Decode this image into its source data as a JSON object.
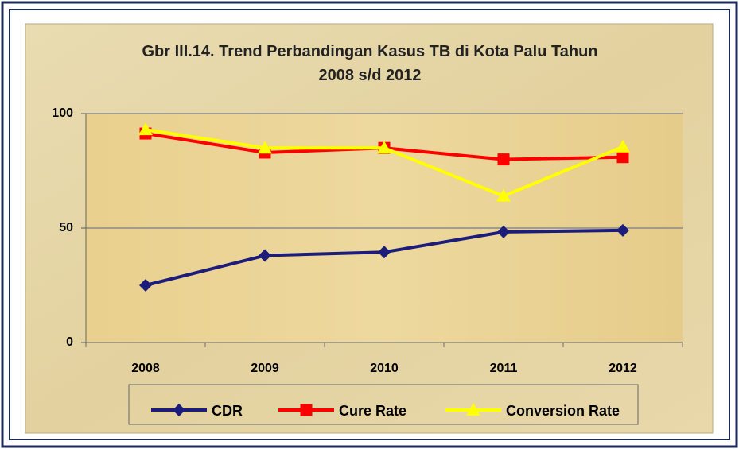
{
  "chart_data": {
    "type": "line",
    "title": "Gbr III.14. Trend Perbandingan Kasus TB di Kota Palu Tahun 2008 s/d 2012",
    "categories": [
      "2008",
      "2009",
      "2010",
      "2011",
      "2012"
    ],
    "series": [
      {
        "name": "CDR",
        "color": "#1c1c7a",
        "marker": "diamond",
        "values": [
          25,
          38,
          39.5,
          48.3,
          49
        ]
      },
      {
        "name": "Cure Rate",
        "color": "#ff0000",
        "marker": "square",
        "values": [
          91.3,
          83,
          85,
          80,
          81
        ]
      },
      {
        "name": "Conversion Rate",
        "color": "#ffff00",
        "marker": "triangle",
        "values": [
          93,
          85,
          85,
          64,
          85.5
        ]
      }
    ],
    "ylim": [
      0,
      100
    ],
    "yticks": [
      0,
      50,
      100
    ],
    "grid": true,
    "legend": "bottom"
  }
}
